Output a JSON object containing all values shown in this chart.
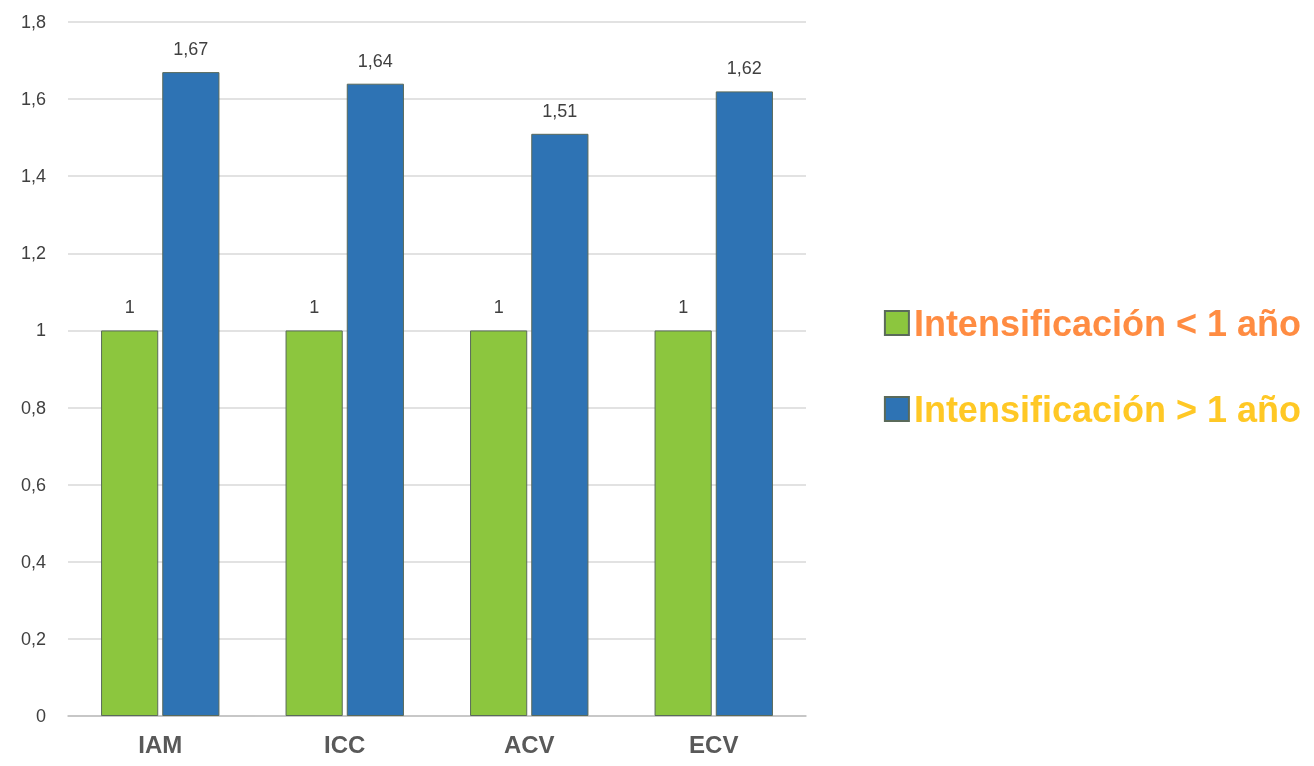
{
  "chart_data": {
    "type": "bar",
    "categories": [
      "IAM",
      "ICC",
      "ACV",
      "ECV"
    ],
    "series": [
      {
        "name": "Intensificación < 1 año",
        "color": "#8cc63e",
        "values": [
          1,
          1,
          1,
          1
        ],
        "value_labels": [
          "1",
          "1",
          "1",
          "1"
        ]
      },
      {
        "name": "Intensificación > 1 año",
        "color": "#2e73b4",
        "values": [
          1.67,
          1.64,
          1.51,
          1.62
        ],
        "value_labels": [
          "1,67",
          "1,64",
          "1,51",
          "1,62"
        ]
      }
    ],
    "ylim": [
      0,
      1.8
    ],
    "yticks": [
      0,
      {
        "value": 0.2,
        "label": "0,2"
      },
      {
        "value": 0.4,
        "label": "0,4"
      },
      {
        "value": 0.6,
        "label": "0,6"
      },
      {
        "value": 0.8,
        "label": "0,8"
      },
      1,
      {
        "value": 1.2,
        "label": "1,2"
      },
      {
        "value": 1.4,
        "label": "1,4"
      },
      {
        "value": 1.6,
        "label": "1,6"
      },
      {
        "value": 1.8,
        "label": "1,8"
      }
    ],
    "grid": "y",
    "legend": "right"
  }
}
